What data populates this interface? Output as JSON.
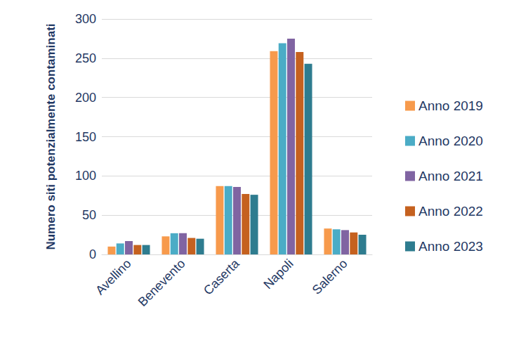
{
  "chart_data": {
    "type": "bar",
    "y_label": "Numero siti potenzialmente contaminati",
    "categories": [
      "Avellino",
      "Benevento",
      "Caserta",
      "Napoli",
      "Salerno"
    ],
    "series": [
      {
        "name": "Anno 2019",
        "color": "#F79A4C",
        "values": [
          10,
          23,
          87,
          259,
          33
        ]
      },
      {
        "name": "Anno 2020",
        "color": "#4BACC6",
        "values": [
          14,
          27,
          87,
          269,
          32
        ]
      },
      {
        "name": "Anno 2021",
        "color": "#8064A2",
        "values": [
          17,
          27,
          86,
          275,
          31
        ]
      },
      {
        "name": "Anno 2022",
        "color": "#C5611F",
        "values": [
          12,
          21,
          77,
          258,
          28
        ]
      },
      {
        "name": "Anno 2023",
        "color": "#2E7C8F",
        "values": [
          12,
          20,
          76,
          243,
          25
        ]
      }
    ],
    "ylim": [
      0,
      300
    ],
    "yticks": [
      0,
      50,
      100,
      150,
      200,
      250,
      300
    ],
    "grid": true,
    "legend": "right"
  }
}
